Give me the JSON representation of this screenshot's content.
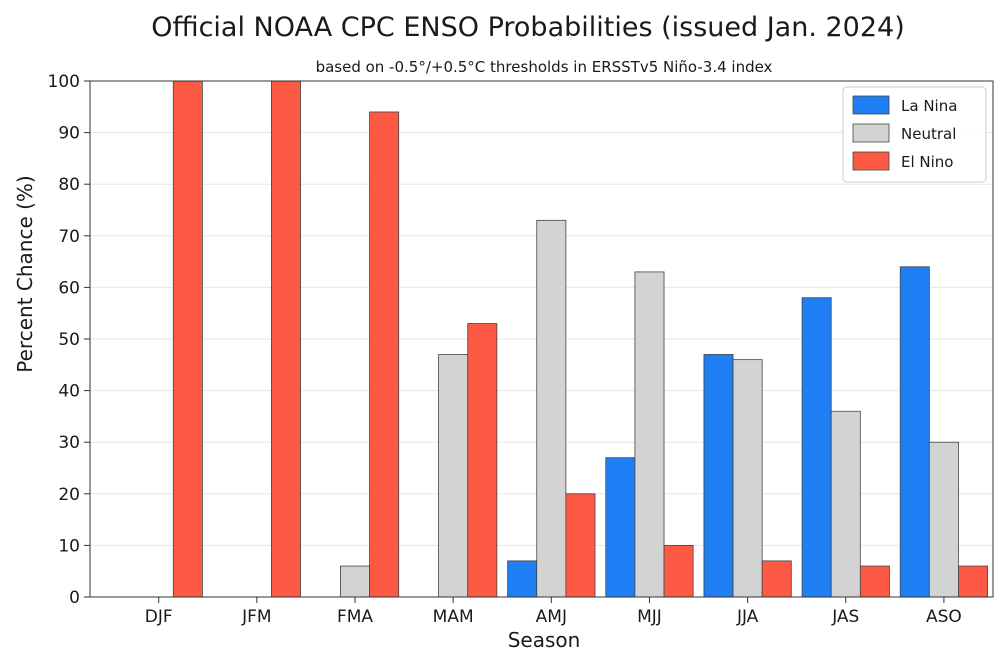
{
  "chart_data": {
    "type": "bar",
    "title": "Official NOAA CPC ENSO Probabilities (issued Jan. 2024)",
    "subtitle": "based on -0.5°/+0.5°C thresholds in ERSSTv5 Niño-3.4 index",
    "xlabel": "Season",
    "ylabel": "Percent Chance (%)",
    "ylim": [
      0,
      100
    ],
    "yticks": [
      0,
      10,
      20,
      30,
      40,
      50,
      60,
      70,
      80,
      90,
      100
    ],
    "grid": "horizontal",
    "legend_position": "top-right",
    "categories": [
      "DJF",
      "JFM",
      "FMA",
      "MAM",
      "AMJ",
      "MJJ",
      "JJA",
      "JAS",
      "ASO"
    ],
    "series": [
      {
        "name": "La Nina",
        "color": "#1f7ef4",
        "values": [
          0,
          0,
          0,
          0,
          7,
          27,
          47,
          58,
          64
        ]
      },
      {
        "name": "Neutral",
        "color": "#d3d3d3",
        "values": [
          0,
          0,
          6,
          47,
          73,
          63,
          46,
          36,
          30
        ]
      },
      {
        "name": "El Nino",
        "color": "#fc5a44",
        "values": [
          100,
          100,
          94,
          53,
          20,
          10,
          7,
          6,
          6
        ]
      }
    ]
  }
}
